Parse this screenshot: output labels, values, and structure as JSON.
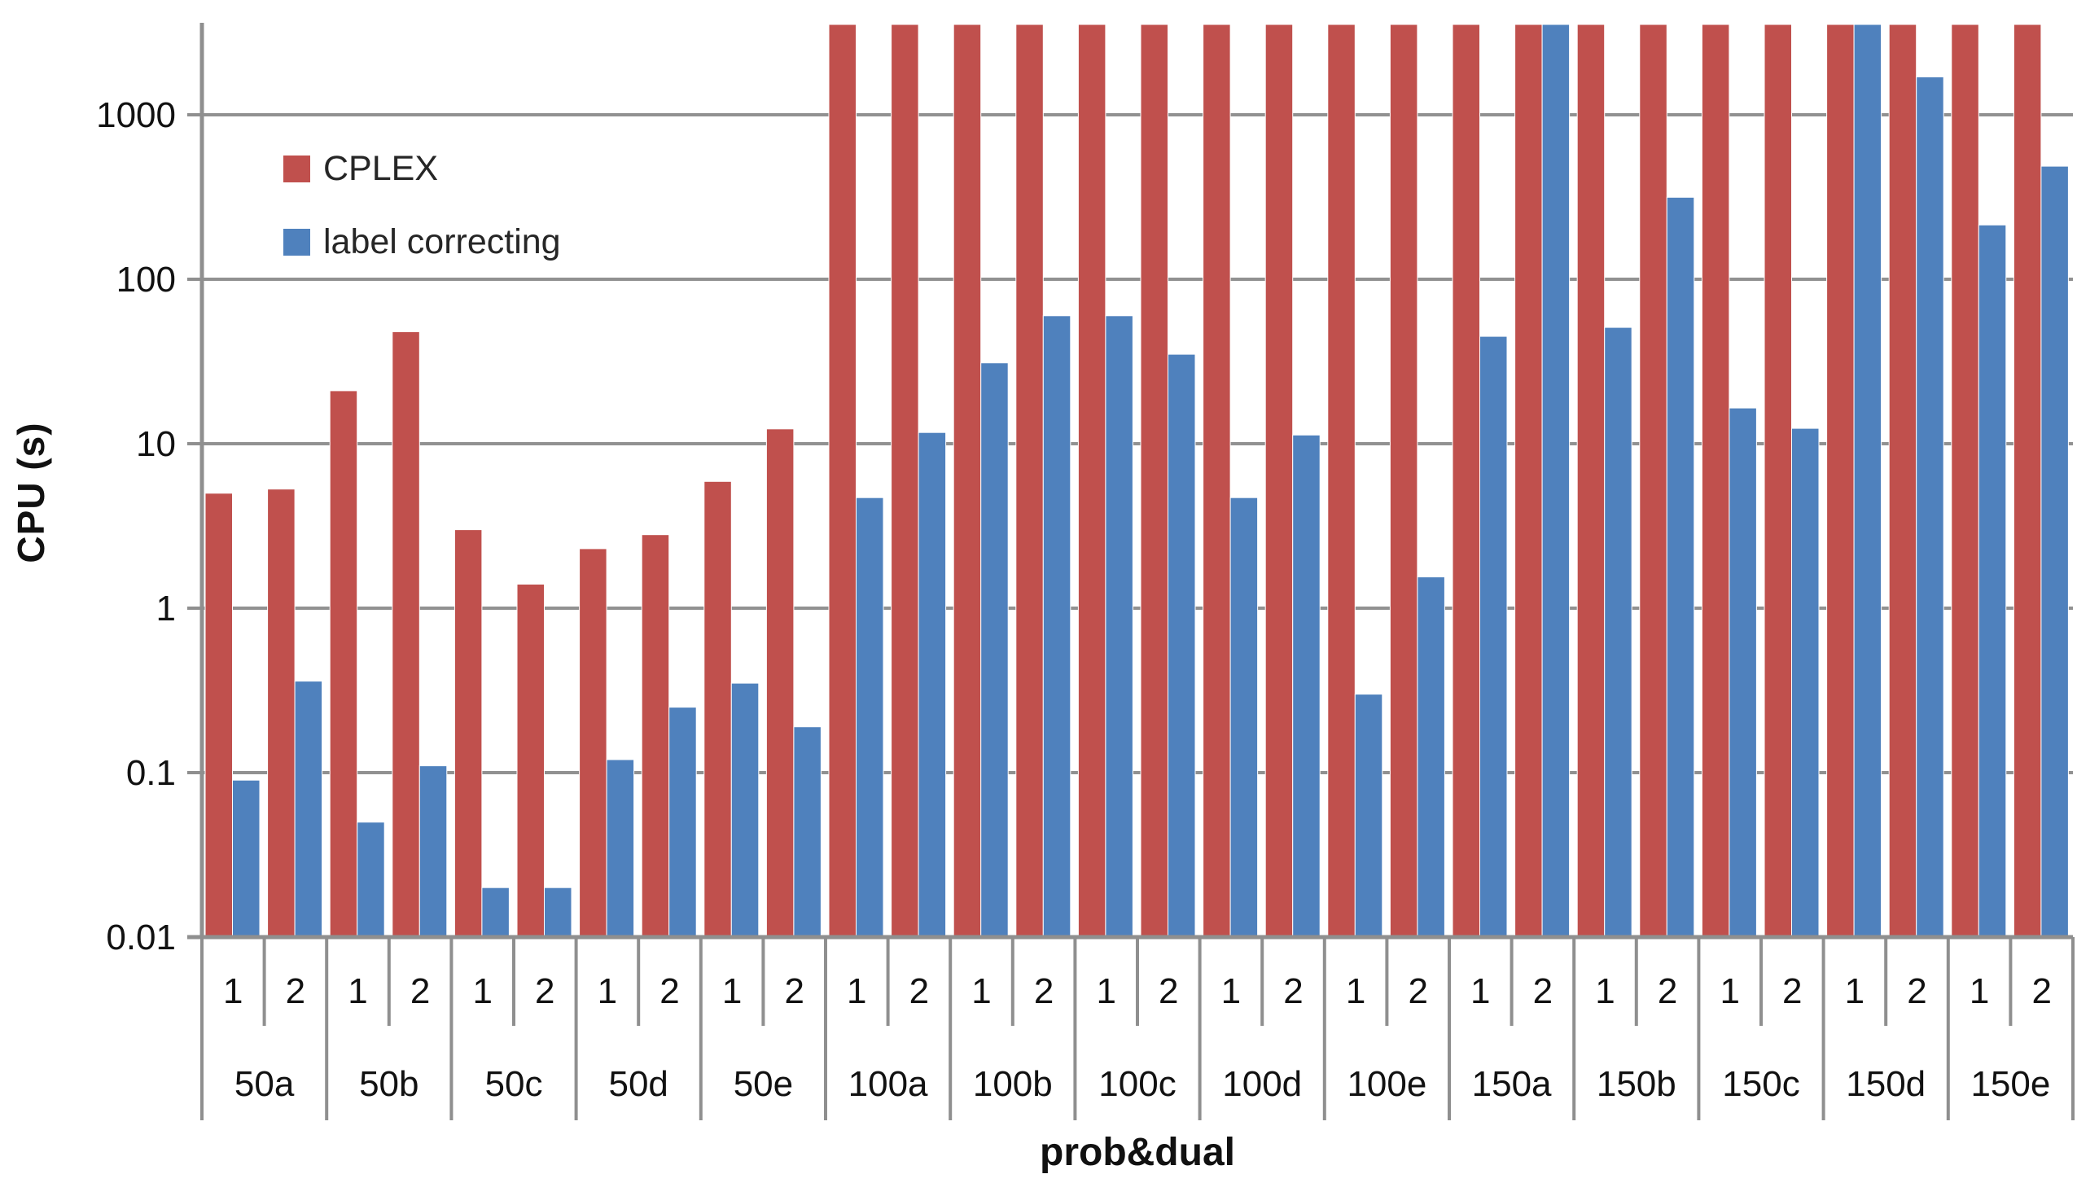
{
  "chart_data": {
    "type": "bar",
    "title": "",
    "xlabel": "prob&dual",
    "ylabel": "CPU (s)",
    "y_scale": "log",
    "y_tick_labels": [
      "0.01",
      "0.1",
      "1",
      "10",
      "100",
      "1000"
    ],
    "y_tick_values": [
      0.01,
      0.1,
      1,
      10,
      100,
      1000
    ],
    "ylim": [
      0.01,
      3600
    ],
    "grid": "horizontal",
    "legend_position": "top-left-inside",
    "clip_note": "bars reaching the plot top are truncated at ~3600 s",
    "groups": [
      "50a",
      "50b",
      "50c",
      "50d",
      "50e",
      "100a",
      "100b",
      "100c",
      "100d",
      "100e",
      "150a",
      "150b",
      "150c",
      "150d",
      "150e"
    ],
    "duals": [
      "1",
      "2"
    ],
    "series": [
      {
        "name": "CPLEX",
        "color": "#c0504d",
        "values": [
          5,
          5.3,
          21,
          48,
          3,
          1.4,
          2.3,
          2.8,
          5.9,
          12.3,
          3600,
          3600,
          3600,
          3600,
          3600,
          3600,
          3600,
          3600,
          3600,
          3600,
          3600,
          3600,
          3600,
          3600,
          3600,
          3600,
          3600,
          3600,
          3600,
          3600
        ]
      },
      {
        "name": "label correcting",
        "color": "#4f81bd",
        "values": [
          0.09,
          0.36,
          0.05,
          0.11,
          0.02,
          0.02,
          0.12,
          0.25,
          0.35,
          0.19,
          4.7,
          11.7,
          31,
          60,
          60,
          35,
          4.7,
          11.3,
          0.3,
          1.55,
          45,
          3600,
          51,
          315,
          16.5,
          12.4,
          3600,
          1700,
          214,
          487
        ]
      }
    ],
    "colors": {
      "gridline": "#919191",
      "axis": "#8f8f8f",
      "text": "#111111"
    }
  }
}
